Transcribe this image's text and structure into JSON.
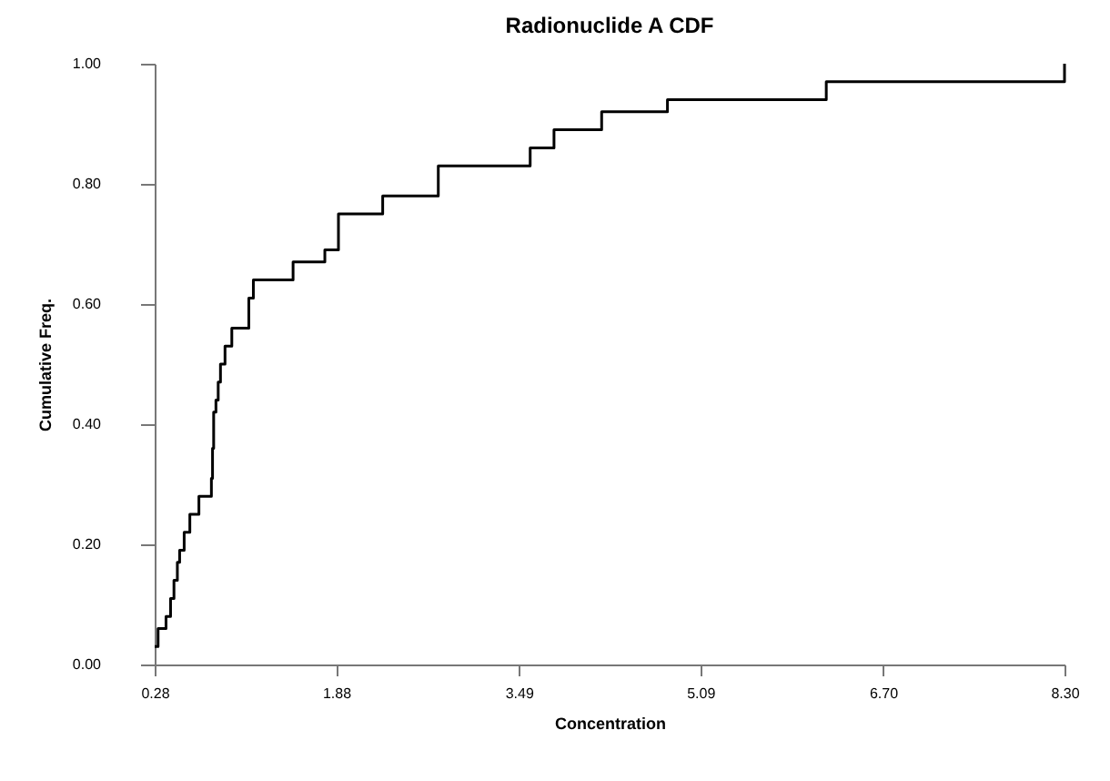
{
  "chart_data": {
    "type": "step",
    "title": "Radionuclide A CDF",
    "xlabel": "Concentration",
    "ylabel": "Cumulative Freq.",
    "x": [
      0.28,
      0.31,
      0.38,
      0.42,
      0.45,
      0.48,
      0.5,
      0.54,
      0.59,
      0.67,
      0.78,
      0.79,
      0.8,
      0.82,
      0.84,
      0.86,
      0.9,
      0.96,
      1.11,
      1.15,
      1.5,
      1.78,
      1.9,
      2.29,
      2.78,
      3.59,
      3.8,
      4.22,
      4.8,
      6.2,
      8.3
    ],
    "values": [
      0.03,
      0.06,
      0.08,
      0.11,
      0.14,
      0.17,
      0.19,
      0.22,
      0.25,
      0.28,
      0.31,
      0.36,
      0.42,
      0.44,
      0.47,
      0.5,
      0.53,
      0.56,
      0.61,
      0.64,
      0.67,
      0.69,
      0.75,
      0.78,
      0.83,
      0.86,
      0.89,
      0.92,
      0.94,
      0.97,
      1.0
    ],
    "color": "#000000",
    "line_style": "solid",
    "grid": false,
    "xlim": [
      0.28,
      8.3
    ],
    "ylim": [
      0,
      1
    ],
    "xticks": [
      {
        "value": 0.28,
        "label": "0.28"
      },
      {
        "value": 1.88,
        "label": "1.88"
      },
      {
        "value": 3.49,
        "label": "3.49"
      },
      {
        "value": 5.09,
        "label": "5.09"
      },
      {
        "value": 6.7,
        "label": "6.70"
      },
      {
        "value": 8.3,
        "label": "8.30"
      }
    ],
    "yticks": [
      {
        "value": 0,
        "label": "0.00"
      },
      {
        "value": 0.2,
        "label": "0.20"
      },
      {
        "value": 0.4,
        "label": "0.40"
      },
      {
        "value": 0.6,
        "label": "0.60"
      },
      {
        "value": 0.8,
        "label": "0.80"
      },
      {
        "value": 1,
        "label": "1.00"
      }
    ]
  }
}
